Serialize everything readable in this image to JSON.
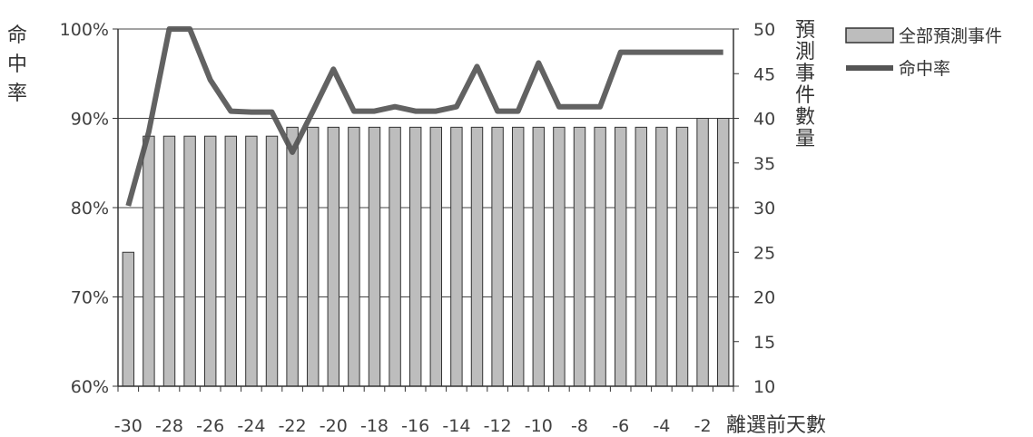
{
  "chart_data": {
    "type": "bar",
    "x": [
      -30,
      -29,
      -28,
      -27,
      -26,
      -25,
      -24,
      -23,
      -22,
      -21,
      -20,
      -19,
      -18,
      -17,
      -16,
      -15,
      -14,
      -13,
      -12,
      -11,
      -10,
      -9,
      -8,
      -7,
      -6,
      -5,
      -4,
      -3,
      -2,
      -1
    ],
    "x_tick_labels": [
      "-30",
      "-28",
      "-26",
      "-24",
      "-22",
      "-20",
      "-18",
      "-16",
      "-14",
      "-12",
      "-10",
      "-8",
      "-6",
      "-4",
      "-2"
    ],
    "xlabel": "離選前天數",
    "y_left": {
      "label": "命中率",
      "ylim": [
        60,
        100
      ],
      "ticks": [
        "60%",
        "70%",
        "80%",
        "90%",
        "100%"
      ]
    },
    "y_right": {
      "label": "預測事件數量",
      "ylim": [
        10,
        50
      ],
      "ticks": [
        "10",
        "15",
        "20",
        "25",
        "30",
        "35",
        "40",
        "45",
        "50"
      ]
    },
    "series": [
      {
        "name": "全部預測事件",
        "type": "bar",
        "axis": "right",
        "color": "#bdbdbd",
        "values": [
          25,
          38,
          38,
          38,
          38,
          38,
          38,
          38,
          39,
          39,
          39,
          39,
          39,
          39,
          39,
          39,
          39,
          39,
          39,
          39,
          39,
          39,
          39,
          39,
          39,
          39,
          39,
          39,
          40,
          40
        ]
      },
      {
        "name": "命中率",
        "type": "line",
        "axis": "left",
        "color": "#555555",
        "values": [
          80.2,
          88.5,
          100,
          100,
          94.3,
          90.8,
          90.7,
          90.7,
          86.2,
          90.8,
          95.5,
          90.8,
          90.8,
          91.3,
          90.8,
          90.8,
          91.3,
          95.8,
          90.8,
          90.8,
          96.2,
          91.3,
          91.3,
          91.3,
          97.4,
          97.4,
          97.4,
          97.4,
          97.4,
          97.4
        ]
      }
    ],
    "grid": true,
    "legend": "top-right"
  }
}
